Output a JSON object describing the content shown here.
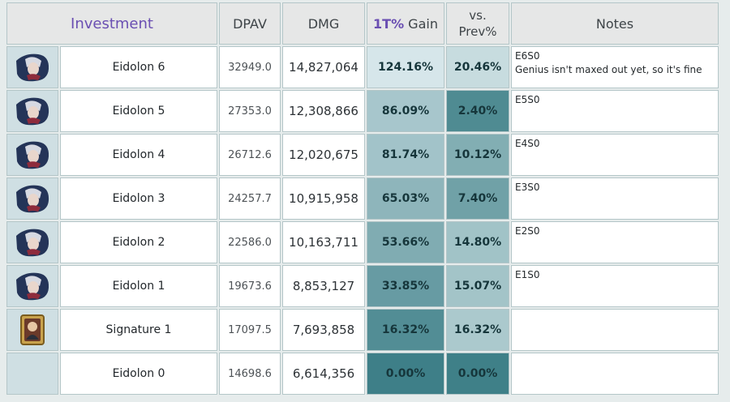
{
  "headers": {
    "investment": "Investment",
    "dpav": "DPAV",
    "dmg": "DMG",
    "gain_accent": "1T%",
    "gain_rest": " Gain",
    "vs_line1": "vs.",
    "vs_line2": "Prev%",
    "notes": "Notes"
  },
  "rows": [
    {
      "avatar": "character-portrait-icon",
      "name": "Eidolon 6",
      "dpav": "32949.0",
      "dmg": "14,827,064",
      "gain": "124.16%",
      "gain_level": 1.2416,
      "vs": "20.46%",
      "vs_level": 0.2046,
      "note_1": "E6S0",
      "note_2": "Genius isn't maxed out yet, so it's fine"
    },
    {
      "avatar": "character-portrait-icon",
      "name": "Eidolon 5",
      "dpav": "27353.0",
      "dmg": "12,308,866",
      "gain": "86.09%",
      "gain_level": 0.8609,
      "vs": "2.40%",
      "vs_level": 0.024,
      "note_1": "E5S0",
      "note_2": ""
    },
    {
      "avatar": "character-portrait-icon",
      "name": "Eidolon 4",
      "dpav": "26712.6",
      "dmg": "12,020,675",
      "gain": "81.74%",
      "gain_level": 0.8174,
      "vs": "10.12%",
      "vs_level": 0.1012,
      "note_1": "E4S0",
      "note_2": ""
    },
    {
      "avatar": "character-portrait-icon",
      "name": "Eidolon 3",
      "dpav": "24257.7",
      "dmg": "10,915,958",
      "gain": "65.03%",
      "gain_level": 0.6503,
      "vs": "7.40%",
      "vs_level": 0.074,
      "note_1": "E3S0",
      "note_2": ""
    },
    {
      "avatar": "character-portrait-icon",
      "name": "Eidolon 2",
      "dpav": "22586.0",
      "dmg": "10,163,711",
      "gain": "53.66%",
      "gain_level": 0.5366,
      "vs": "14.80%",
      "vs_level": 0.148,
      "note_1": "E2S0",
      "note_2": ""
    },
    {
      "avatar": "character-portrait-icon",
      "name": "Eidolon 1",
      "dpav": "19673.6",
      "dmg": "8,853,127",
      "gain": "33.85%",
      "gain_level": 0.3385,
      "vs": "15.07%",
      "vs_level": 0.1507,
      "note_1": "E1S0",
      "note_2": ""
    },
    {
      "avatar": "light-cone-card-icon",
      "name": "Signature 1",
      "dpav": "17097.5",
      "dmg": "7,693,858",
      "gain": "16.32%",
      "gain_level": 0.1632,
      "vs": "16.32%",
      "vs_level": 0.1632,
      "note_1": "",
      "note_2": ""
    },
    {
      "avatar": "",
      "name": "Eidolon 0",
      "dpav": "14698.6",
      "dmg": "6,614,356",
      "gain": "0.00%",
      "gain_level": 0.0,
      "vs": "0.00%",
      "vs_level": 0.0,
      "note_1": "",
      "note_2": ""
    }
  ],
  "colors": {
    "gain_high": "#d6e6ea",
    "gain_low": "#3e7f88",
    "vs_high": "#c7dcdf",
    "vs_low": "#3f8088",
    "header_accent": "#6a4fb2"
  }
}
